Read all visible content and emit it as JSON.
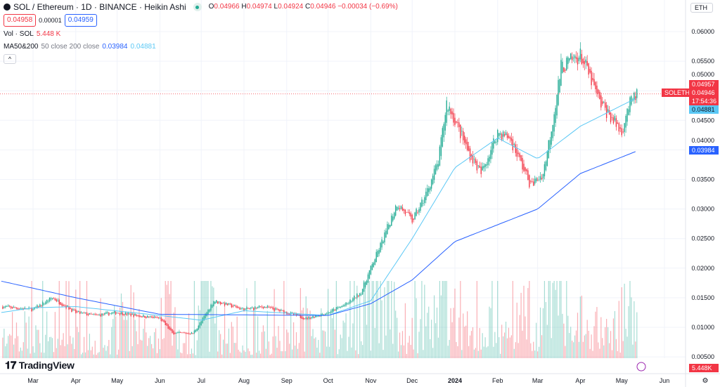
{
  "header": {
    "symbol": "SOL / Ethereum · 1D · BINANCE · Heikin Ashi",
    "open_label": "O",
    "open": "0.04966",
    "high_label": "H",
    "high": "0.04974",
    "low_label": "L",
    "low": "0.04924",
    "close_label": "C",
    "close": "0.04946",
    "change": "−0.00034 (−0.69%)",
    "sell": "0.04958",
    "spread": "0.00001",
    "buy": "0.04959",
    "currency": "ETH"
  },
  "indicators": {
    "vol_label": "Vol · SOL",
    "vol_value": "5.448 K",
    "ma_label": "MA50&200",
    "ma_params": "50 close 200 close",
    "ma200_value": "0.03984",
    "ma50_value": "0.04881",
    "collapse": "^"
  },
  "price_tags": {
    "symbol": "SOLETH",
    "last": "0.04957",
    "close": "0.04946",
    "countdown": "17:54:36",
    "ma50": "0.04881",
    "ma200": "0.03984",
    "volume": "5.448K"
  },
  "logo": "TradingView",
  "colors": {
    "up": "#22ab94",
    "down": "#f23645",
    "ma50": "#5bc8f5",
    "ma200": "#2962ff"
  },
  "chart_data": {
    "type": "candlestick",
    "style": "Heikin Ashi",
    "y_ticks": [
      "0.06000",
      "0.05500",
      "0.05000",
      "0.04500",
      "0.04000",
      "0.03500",
      "0.03000",
      "0.02500",
      "0.02000",
      "0.01500",
      "0.01000",
      "0.00500"
    ],
    "ylim": [
      0.0036,
      0.0612
    ],
    "x_ticks": [
      "Mar",
      "Apr",
      "May",
      "Jun",
      "Jul",
      "Aug",
      "Sep",
      "Oct",
      "Nov",
      "Dec",
      "2024",
      "Feb",
      "Mar",
      "Apr",
      "May",
      "Jun"
    ],
    "xlim": [
      "2023-02-06",
      "2024-06-15"
    ],
    "grid": true,
    "price_path": [
      [
        "2023-02-06",
        0.0135
      ],
      [
        "2023-03-01",
        0.013
      ],
      [
        "2023-03-15",
        0.015
      ],
      [
        "2023-04-01",
        0.0125
      ],
      [
        "2023-04-15",
        0.012
      ],
      [
        "2023-05-01",
        0.0125
      ],
      [
        "2023-05-15",
        0.012
      ],
      [
        "2023-06-01",
        0.0115
      ],
      [
        "2023-06-10",
        0.009
      ],
      [
        "2023-06-25",
        0.009
      ],
      [
        "2023-07-01",
        0.011
      ],
      [
        "2023-07-10",
        0.0145
      ],
      [
        "2023-08-01",
        0.013
      ],
      [
        "2023-08-15",
        0.0135
      ],
      [
        "2023-09-01",
        0.0125
      ],
      [
        "2023-09-15",
        0.0115
      ],
      [
        "2023-10-01",
        0.0125
      ],
      [
        "2023-10-15",
        0.014
      ],
      [
        "2023-10-25",
        0.016
      ],
      [
        "2023-11-01",
        0.02
      ],
      [
        "2023-11-10",
        0.025
      ],
      [
        "2023-11-20",
        0.031
      ],
      [
        "2023-12-01",
        0.028
      ],
      [
        "2023-12-10",
        0.032
      ],
      [
        "2023-12-20",
        0.038
      ],
      [
        "2023-12-26",
        0.048
      ],
      [
        "2024-01-01",
        0.045
      ],
      [
        "2024-01-10",
        0.04
      ],
      [
        "2024-01-20",
        0.036
      ],
      [
        "2024-02-01",
        0.043
      ],
      [
        "2024-02-10",
        0.042
      ],
      [
        "2024-02-25",
        0.034
      ],
      [
        "2024-03-05",
        0.036
      ],
      [
        "2024-03-12",
        0.045
      ],
      [
        "2024-03-18",
        0.054
      ],
      [
        "2024-04-01",
        0.056
      ],
      [
        "2024-04-05",
        0.054
      ],
      [
        "2024-04-15",
        0.048
      ],
      [
        "2024-04-25",
        0.045
      ],
      [
        "2024-05-01",
        0.043
      ],
      [
        "2024-05-05",
        0.047
      ],
      [
        "2024-05-12",
        0.0495
      ]
    ],
    "ma50": [
      [
        "2023-02-06",
        0.0125
      ],
      [
        "2023-03-01",
        0.0133
      ],
      [
        "2023-04-01",
        0.0135
      ],
      [
        "2023-06-01",
        0.012
      ],
      [
        "2023-07-01",
        0.0112
      ],
      [
        "2023-08-01",
        0.0128
      ],
      [
        "2023-10-01",
        0.012
      ],
      [
        "2023-11-01",
        0.0145
      ],
      [
        "2023-12-01",
        0.025
      ],
      [
        "2024-01-01",
        0.037
      ],
      [
        "2024-02-01",
        0.042
      ],
      [
        "2024-03-01",
        0.0385
      ],
      [
        "2024-04-01",
        0.044
      ],
      [
        "2024-05-12",
        0.0488
      ]
    ],
    "ma200": [
      [
        "2023-02-06",
        0.0178
      ],
      [
        "2023-04-01",
        0.015
      ],
      [
        "2023-06-01",
        0.0122
      ],
      [
        "2023-10-01",
        0.012
      ],
      [
        "2023-11-01",
        0.014
      ],
      [
        "2023-12-01",
        0.018
      ],
      [
        "2024-01-01",
        0.0245
      ],
      [
        "2024-03-01",
        0.03
      ],
      [
        "2024-04-01",
        0.036
      ],
      [
        "2024-05-12",
        0.0398
      ]
    ]
  }
}
